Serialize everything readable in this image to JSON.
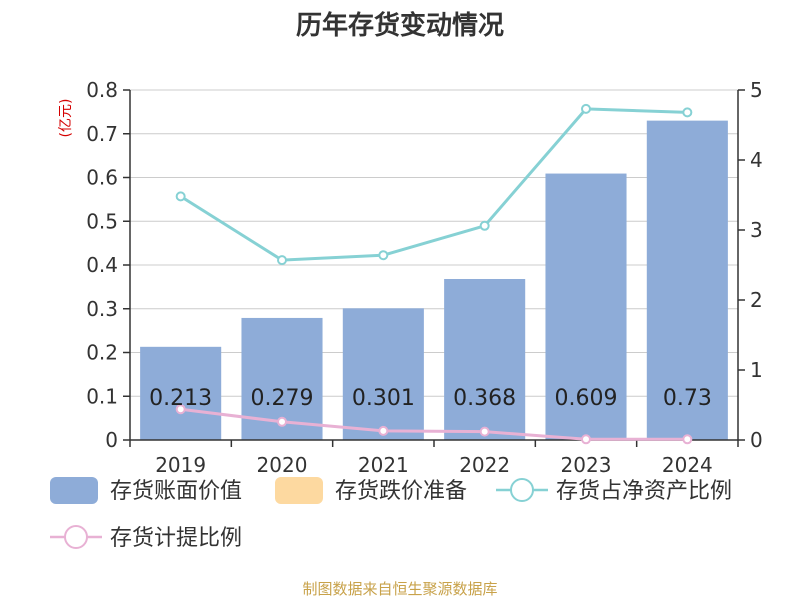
{
  "source": "制图数据来自恒生聚源数据库",
  "chart_data": {
    "type": "bar",
    "title": "历年存货变动情况",
    "ylabel": "(亿元)",
    "categories": [
      "2019",
      "2020",
      "2021",
      "2022",
      "2023",
      "2024"
    ],
    "ylim_left": [
      0,
      0.8
    ],
    "yticks_left": [
      "0",
      "0.1",
      "0.2",
      "0.3",
      "0.4",
      "0.5",
      "0.6",
      "0.7",
      "0.8"
    ],
    "ylim_right": [
      0,
      5
    ],
    "yticks_right": [
      "0",
      "1",
      "2",
      "3",
      "4",
      "5"
    ],
    "grid": true,
    "legend_position": "bottom",
    "series": [
      {
        "name": "存货账面价值",
        "type": "bar",
        "axis": "left",
        "color": "#8eacd8",
        "values": [
          0.213,
          0.279,
          0.301,
          0.368,
          0.609,
          0.73
        ],
        "labels": [
          "0.213",
          "0.279",
          "0.301",
          "0.368",
          "0.609",
          "0.73"
        ]
      },
      {
        "name": "存货跌价准备",
        "type": "bar",
        "axis": "left",
        "color": "#fdd9a0",
        "values": [
          0,
          0,
          0,
          0,
          0,
          0
        ]
      },
      {
        "name": "存货占净资产比例",
        "type": "line",
        "axis": "right",
        "color": "#86d1d4",
        "values": [
          3.48,
          2.57,
          2.64,
          3.06,
          4.73,
          4.68
        ]
      },
      {
        "name": "存货计提比例",
        "type": "line",
        "axis": "right",
        "color": "#e8b1d4",
        "values": [
          0.44,
          0.26,
          0.13,
          0.12,
          0.01,
          0.01
        ]
      }
    ]
  }
}
